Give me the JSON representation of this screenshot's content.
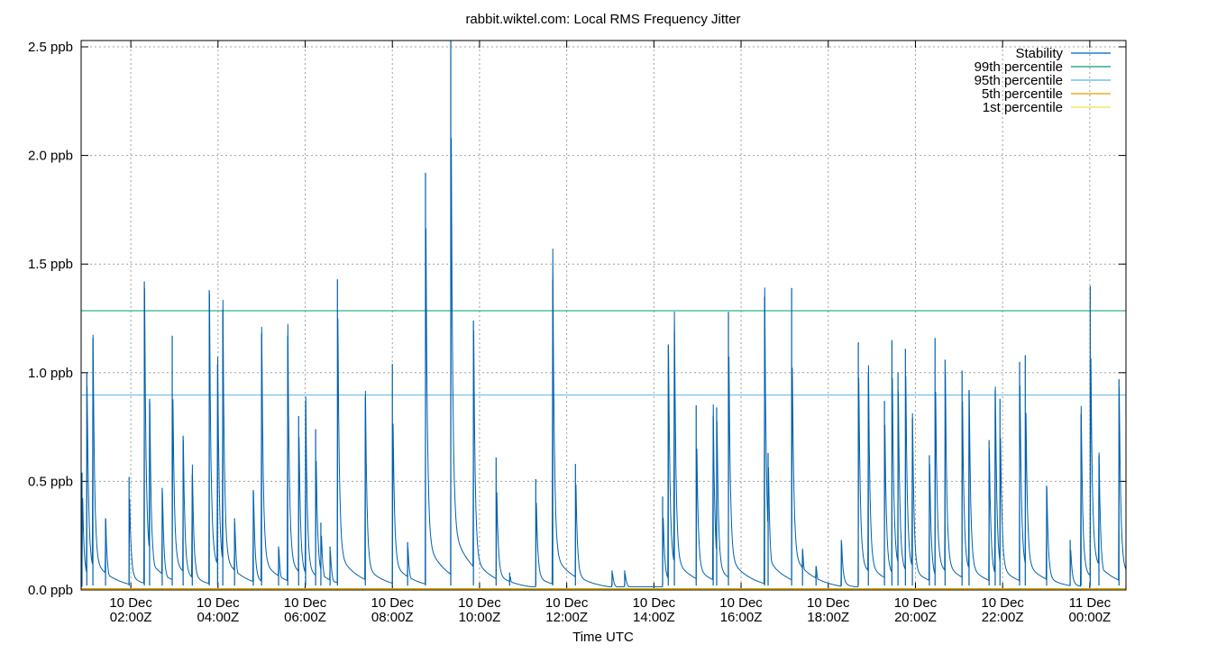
{
  "chart_data": {
    "type": "line",
    "title": "rabbit.wiktel.com: Local RMS Frequency Jitter",
    "xlabel": "Time UTC",
    "ylabel": "",
    "x_unit": "hours since 10 Dec 00:00Z",
    "xlim": [
      0.86,
      24.83
    ],
    "ylim": [
      0,
      2.55
    ],
    "grid": true,
    "legend_position": "top-right",
    "y_ticks": [
      {
        "value": 0.0,
        "label": "0.0 ppb"
      },
      {
        "value": 0.5,
        "label": "0.5 ppb"
      },
      {
        "value": 1.0,
        "label": "1.0 ppb"
      },
      {
        "value": 1.5,
        "label": "1.5 ppb"
      },
      {
        "value": 2.0,
        "label": "2.0 ppb"
      },
      {
        "value": 2.5,
        "label": "2.5 ppb"
      }
    ],
    "x_ticks": [
      {
        "value": 2,
        "date": "10 Dec",
        "time": "02:00Z"
      },
      {
        "value": 4,
        "date": "10 Dec",
        "time": "04:00Z"
      },
      {
        "value": 6,
        "date": "10 Dec",
        "time": "06:00Z"
      },
      {
        "value": 8,
        "date": "10 Dec",
        "time": "08:00Z"
      },
      {
        "value": 10,
        "date": "10 Dec",
        "time": "10:00Z"
      },
      {
        "value": 12,
        "date": "10 Dec",
        "time": "12:00Z"
      },
      {
        "value": 14,
        "date": "10 Dec",
        "time": "14:00Z"
      },
      {
        "value": 16,
        "date": "10 Dec",
        "time": "16:00Z"
      },
      {
        "value": 18,
        "date": "10 Dec",
        "time": "18:00Z"
      },
      {
        "value": 20,
        "date": "10 Dec",
        "time": "20:00Z"
      },
      {
        "value": 22,
        "date": "10 Dec",
        "time": "22:00Z"
      },
      {
        "value": 24,
        "date": "11 Dec",
        "time": "00:00Z"
      }
    ],
    "series": [
      {
        "name": "Stability",
        "color": "#0060ad",
        "spikes": [
          [
            0.88,
            0.54
          ],
          [
            0.99,
            1.0
          ],
          [
            1.13,
            1.16
          ],
          [
            1.42,
            0.33
          ],
          [
            1.96,
            0.52
          ],
          [
            2.31,
            1.42
          ],
          [
            2.43,
            0.88
          ],
          [
            2.72,
            0.47
          ],
          [
            2.95,
            1.17
          ],
          [
            3.2,
            0.71
          ],
          [
            3.41,
            0.53
          ],
          [
            3.8,
            1.38
          ],
          [
            3.99,
            1.04
          ],
          [
            4.11,
            1.29
          ],
          [
            4.38,
            0.33
          ],
          [
            4.81,
            0.46
          ],
          [
            5.0,
            1.18
          ],
          [
            5.39,
            0.2
          ],
          [
            5.6,
            1.17
          ],
          [
            5.85,
            0.8
          ],
          [
            6.01,
            0.87
          ],
          [
            6.24,
            0.74
          ],
          [
            6.36,
            0.31
          ],
          [
            6.57,
            0.2
          ],
          [
            6.74,
            1.43
          ],
          [
            7.38,
            0.89
          ],
          [
            8.0,
            1.04
          ],
          [
            8.35,
            0.22
          ],
          [
            8.76,
            1.92
          ],
          [
            9.34,
            2.53
          ],
          [
            9.86,
            1.24
          ],
          [
            10.38,
            0.61
          ],
          [
            10.69,
            0.08
          ],
          [
            11.29,
            0.51
          ],
          [
            11.68,
            1.43
          ],
          [
            12.2,
            0.58
          ],
          [
            13.04,
            0.09
          ],
          [
            13.33,
            0.09
          ],
          [
            14.2,
            0.43
          ],
          [
            14.33,
            1.13
          ],
          [
            14.47,
            1.19
          ],
          [
            14.97,
            0.85
          ],
          [
            15.36,
            0.8
          ],
          [
            15.44,
            0.84
          ],
          [
            15.71,
            1.28
          ],
          [
            16.54,
            1.35
          ],
          [
            16.62,
            0.63
          ],
          [
            17.16,
            1.39
          ],
          [
            17.41,
            0.19
          ],
          [
            17.72,
            0.11
          ],
          [
            18.3,
            0.23
          ],
          [
            18.69,
            1.14
          ],
          [
            18.92,
            1.0
          ],
          [
            19.29,
            0.87
          ],
          [
            19.46,
            1.15
          ],
          [
            19.6,
            1.0
          ],
          [
            19.77,
            1.11
          ],
          [
            19.93,
            0.79
          ],
          [
            20.32,
            0.62
          ],
          [
            20.45,
            1.16
          ],
          [
            20.68,
            1.06
          ],
          [
            21.07,
            1.01
          ],
          [
            21.23,
            0.92
          ],
          [
            21.69,
            0.69
          ],
          [
            21.83,
            0.92
          ],
          [
            21.94,
            0.88
          ],
          [
            22.39,
            1.05
          ],
          [
            22.52,
            1.08
          ],
          [
            23.01,
            0.48
          ],
          [
            23.55,
            0.23
          ],
          [
            23.8,
            0.81
          ],
          [
            24.01,
            1.4
          ],
          [
            24.21,
            0.62
          ],
          [
            24.67,
            0.97
          ]
        ]
      },
      {
        "name": "99th percentile",
        "color": "#009e73",
        "value": 1.285
      },
      {
        "name": "95th percentile",
        "color": "#56b4e9",
        "value": 0.897
      },
      {
        "name": "5th percentile",
        "color": "#e69f00",
        "value": 0.006
      },
      {
        "name": "1st percentile",
        "color": "#f0e442",
        "value": 0.003
      }
    ]
  }
}
